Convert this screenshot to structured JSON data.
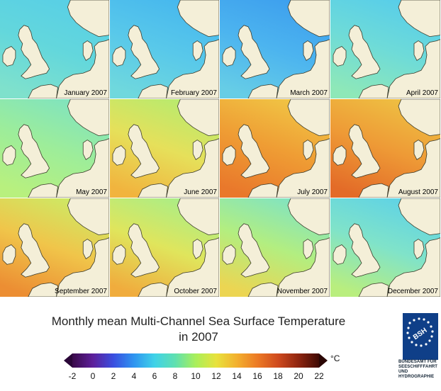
{
  "maps": [
    {
      "month": "January 2007",
      "tones": [
        "#58cfe6",
        "#63d7dc",
        "#7fe1cc"
      ]
    },
    {
      "month": "February 2007",
      "tones": [
        "#46b7ee",
        "#58c8ea",
        "#6fd8dd"
      ]
    },
    {
      "month": "March 2007",
      "tones": [
        "#3d9fee",
        "#4cb4ef",
        "#66cde6"
      ]
    },
    {
      "month": "April 2007",
      "tones": [
        "#57cdea",
        "#6edbd8",
        "#8ee8b8"
      ]
    },
    {
      "month": "May 2007",
      "tones": [
        "#7fe3c0",
        "#9ded9a",
        "#b8f07e"
      ]
    },
    {
      "month": "June 2007",
      "tones": [
        "#b6eb6f",
        "#e6e05a",
        "#f1b43e"
      ]
    },
    {
      "month": "July 2007",
      "tones": [
        "#f0c645",
        "#ef9d34",
        "#e9782b"
      ]
    },
    {
      "month": "August 2007",
      "tones": [
        "#eec143",
        "#ee9a36",
        "#e36b28"
      ]
    },
    {
      "month": "September 2007",
      "tones": [
        "#cceb66",
        "#f0c54a",
        "#ec8e33"
      ]
    },
    {
      "month": "October 2007",
      "tones": [
        "#a8ee88",
        "#e0e55c",
        "#f0ac3d"
      ]
    },
    {
      "month": "November 2007",
      "tones": [
        "#7fe3c4",
        "#b3ee80",
        "#ecd552"
      ]
    },
    {
      "month": "December 2007",
      "tones": [
        "#5ed2e6",
        "#80e3c9",
        "#b9ee7e"
      ]
    }
  ],
  "title_line1": "Monthly mean Multi-Channel Sea Surface Temperature",
  "title_line2": "in 2007",
  "colorbar": {
    "min": -2,
    "max": 22,
    "ticks": [
      "-2",
      "0",
      "2",
      "4",
      "6",
      "8",
      "10",
      "12",
      "14",
      "16",
      "18",
      "20",
      "22"
    ],
    "unit": "°C",
    "colors": [
      "#3a0a4a",
      "#5d1f9a",
      "#3a4fe0",
      "#2f95f0",
      "#3fd2e8",
      "#5fe0b0",
      "#a9ef5a",
      "#e8e23c",
      "#f3b02e",
      "#ec7a25",
      "#cf4a1e",
      "#8f2510",
      "#3f0a04"
    ]
  },
  "logo": {
    "mark": "BSH",
    "lines": [
      "BUNDESAMT FÜR",
      "SEESCHIFFFAHRT",
      "UND",
      "HYDROGRAPHIE"
    ]
  }
}
